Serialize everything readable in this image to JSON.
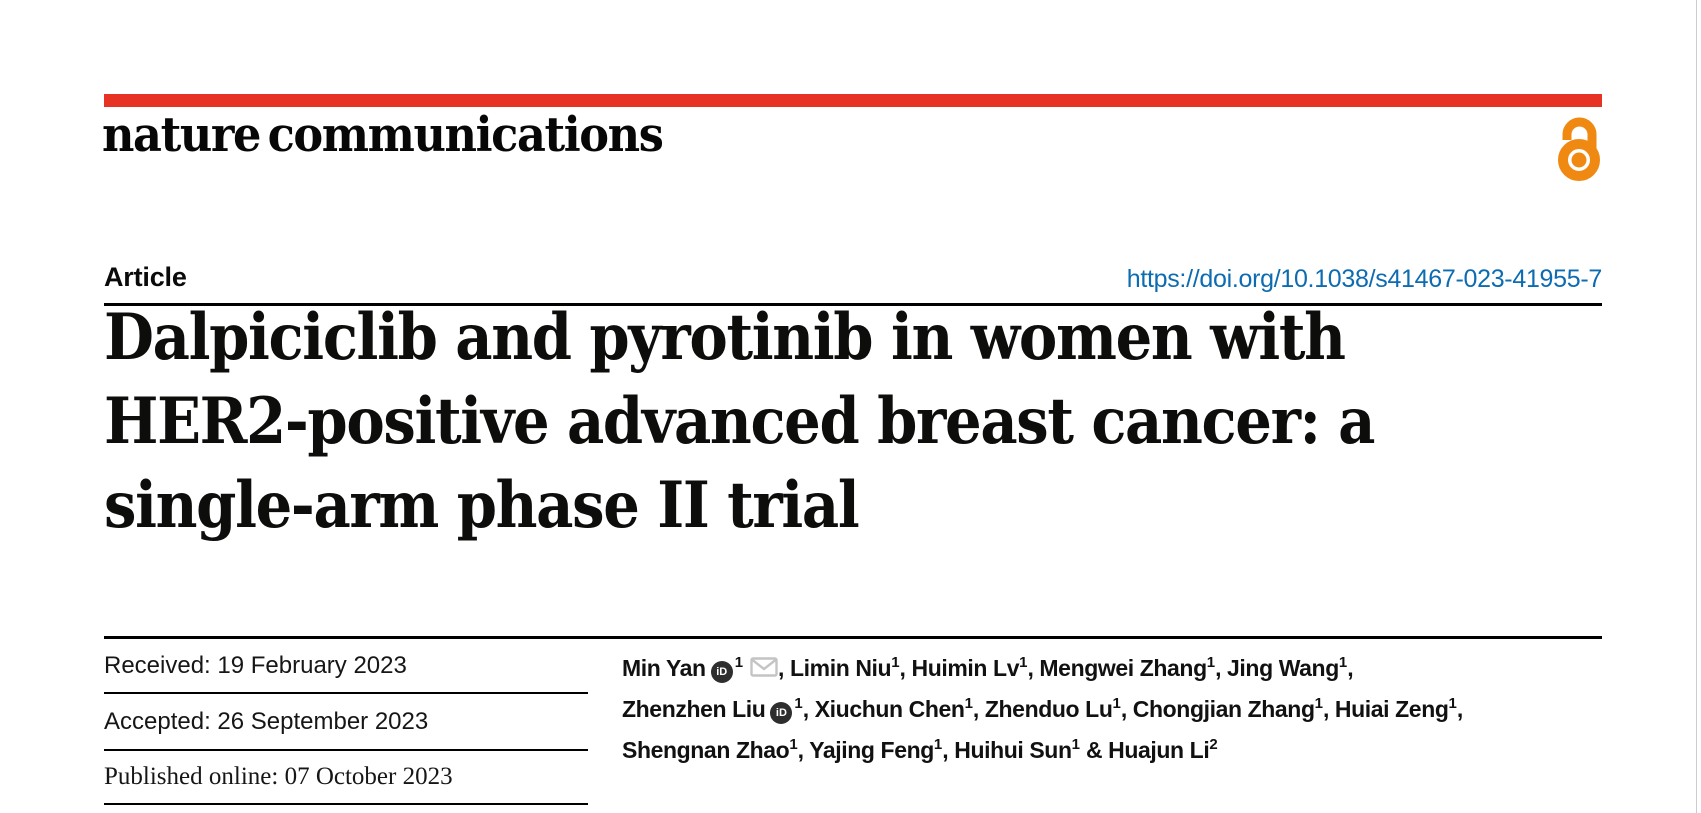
{
  "journal": {
    "name": "nature communications"
  },
  "header": {
    "article_label": "Article",
    "doi": "https://doi.org/10.1038/s41467-023-41955-7"
  },
  "title": {
    "lines": [
      "Dalpiciclib and pyrotinib in women with",
      "HER2-positive advanced breast cancer: a",
      "single-arm phase II trial"
    ]
  },
  "dates": [
    {
      "label": "Received:",
      "value": "19 February 2023",
      "font": "sans"
    },
    {
      "label": "Accepted:",
      "value": "26 September 2023",
      "font": "sans"
    },
    {
      "label": "Published online:",
      "value": "07 October 2023",
      "font": "serif"
    }
  ],
  "authors": {
    "orcid_label": "iD",
    "lines": [
      [
        {
          "t": "text",
          "v": "Min Yan"
        },
        {
          "t": "orcid"
        },
        {
          "t": "sup",
          "v": "1"
        },
        {
          "t": "mail"
        },
        {
          "t": "text",
          "v": ", Limin Niu"
        },
        {
          "t": "sup",
          "v": "1"
        },
        {
          "t": "text",
          "v": ", Huimin Lv"
        },
        {
          "t": "sup",
          "v": "1"
        },
        {
          "t": "text",
          "v": ", Mengwei Zhang"
        },
        {
          "t": "sup",
          "v": "1"
        },
        {
          "t": "text",
          "v": ", Jing Wang"
        },
        {
          "t": "sup",
          "v": "1"
        },
        {
          "t": "text",
          "v": ","
        }
      ],
      [
        {
          "t": "text",
          "v": "Zhenzhen Liu"
        },
        {
          "t": "orcid"
        },
        {
          "t": "sup",
          "v": "1"
        },
        {
          "t": "text",
          "v": ", Xiuchun Chen"
        },
        {
          "t": "sup",
          "v": "1"
        },
        {
          "t": "text",
          "v": ", Zhenduo Lu"
        },
        {
          "t": "sup",
          "v": "1"
        },
        {
          "t": "text",
          "v": ", Chongjian Zhang"
        },
        {
          "t": "sup",
          "v": "1"
        },
        {
          "t": "text",
          "v": ", Huiai Zeng"
        },
        {
          "t": "sup",
          "v": "1"
        },
        {
          "t": "text",
          "v": ","
        }
      ],
      [
        {
          "t": "text",
          "v": "Shengnan Zhao"
        },
        {
          "t": "sup",
          "v": "1"
        },
        {
          "t": "text",
          "v": ", Yajing Feng"
        },
        {
          "t": "sup",
          "v": "1"
        },
        {
          "t": "text",
          "v": ", Huihui Sun"
        },
        {
          "t": "sup",
          "v": "1"
        },
        {
          "t": "text",
          "v": " & Huajun Li"
        },
        {
          "t": "sup",
          "v": "2"
        }
      ]
    ]
  },
  "colors": {
    "brand_red": "#e63323",
    "link_blue": "#0d6cb1",
    "open_access_orange": "#f08912",
    "orcid_dark": "#2e2e2e",
    "mail_gray": "#c4c4c4"
  }
}
